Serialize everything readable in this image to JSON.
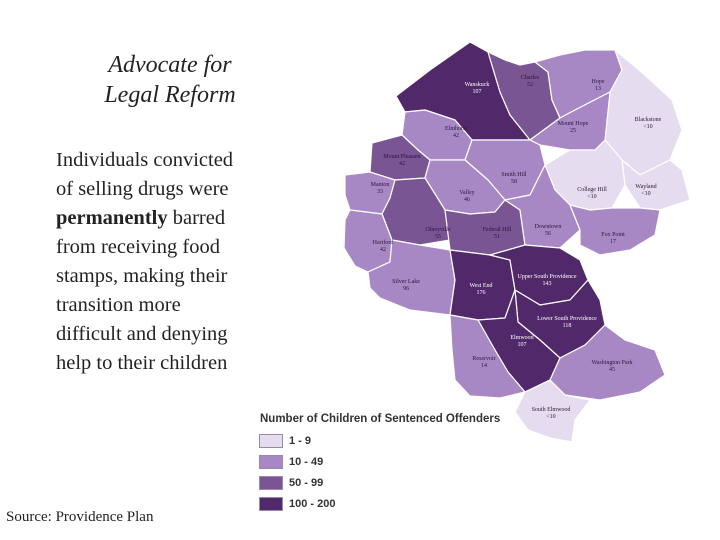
{
  "title": {
    "line1": "Advocate for",
    "line2": "Legal Reform"
  },
  "body": {
    "line1": "Individuals convicted",
    "line2": "of selling drugs were",
    "line3_bold": "permanently",
    "line3_rest": " barred",
    "line4": "from receiving food",
    "line5": "stamps, making their",
    "line6": "transition more",
    "line7": "difficult and denying",
    "line8": "help to their children"
  },
  "source": "Source: Providence Plan",
  "legend": {
    "title": "Number of Children of Sentenced Offenders",
    "items": [
      {
        "label": "1 - 9",
        "color": "#e6dcf0"
      },
      {
        "label": "10 - 49",
        "color": "#a888c4"
      },
      {
        "label": "50 - 99",
        "color": "#7a5594"
      },
      {
        "label": "100 - 200",
        "color": "#51296a"
      }
    ]
  },
  "neighborhoods": [
    {
      "name": "Wanskuck",
      "value": "107",
      "class": "100 - 200"
    },
    {
      "name": "Charles",
      "value": "52",
      "class": "50 - 99"
    },
    {
      "name": "Hope",
      "value": "13",
      "class": "10 - 49"
    },
    {
      "name": "Blackstone",
      "value": "<10",
      "class": "1 - 9"
    },
    {
      "name": "Elmhurst",
      "value": "42",
      "class": "10 - 49"
    },
    {
      "name": "Mount Hope",
      "value": "25",
      "class": "10 - 49"
    },
    {
      "name": "Mount Pleasant",
      "value": "42",
      "class": "10 - 49"
    },
    {
      "name": "Smith Hill",
      "value": "58",
      "class": "50 - 99"
    },
    {
      "name": "Manton",
      "value": "33",
      "class": "10 - 49"
    },
    {
      "name": "Valley",
      "value": "46",
      "class": "10 - 49"
    },
    {
      "name": "College Hill",
      "value": "<10",
      "class": "1 - 9"
    },
    {
      "name": "Wayland",
      "value": "<10",
      "class": "1 - 9"
    },
    {
      "name": "Olneyville",
      "value": "55",
      "class": "50 - 99"
    },
    {
      "name": "Federal Hill",
      "value": "51",
      "class": "50 - 99"
    },
    {
      "name": "Downtown",
      "value": "56",
      "class": "50 - 99"
    },
    {
      "name": "Fox Point",
      "value": "17",
      "class": "10 - 49"
    },
    {
      "name": "Hartford",
      "value": "42",
      "class": "10 - 49"
    },
    {
      "name": "Silver Lake",
      "value": "96",
      "class": "50 - 99"
    },
    {
      "name": "West End",
      "value": "176",
      "class": "100 - 200"
    },
    {
      "name": "Upper South Providence",
      "value": "143",
      "class": "100 - 200"
    },
    {
      "name": "Lower South Providence",
      "value": "118",
      "class": "100 - 200"
    },
    {
      "name": "Elmwood",
      "value": "107",
      "class": "100 - 200"
    },
    {
      "name": "Reservoir",
      "value": "14",
      "class": "10 - 49"
    },
    {
      "name": "Washington Park",
      "value": "45",
      "class": "10 - 49"
    },
    {
      "name": "South Elmwood",
      "value": "<10",
      "class": "1 - 9"
    }
  ]
}
